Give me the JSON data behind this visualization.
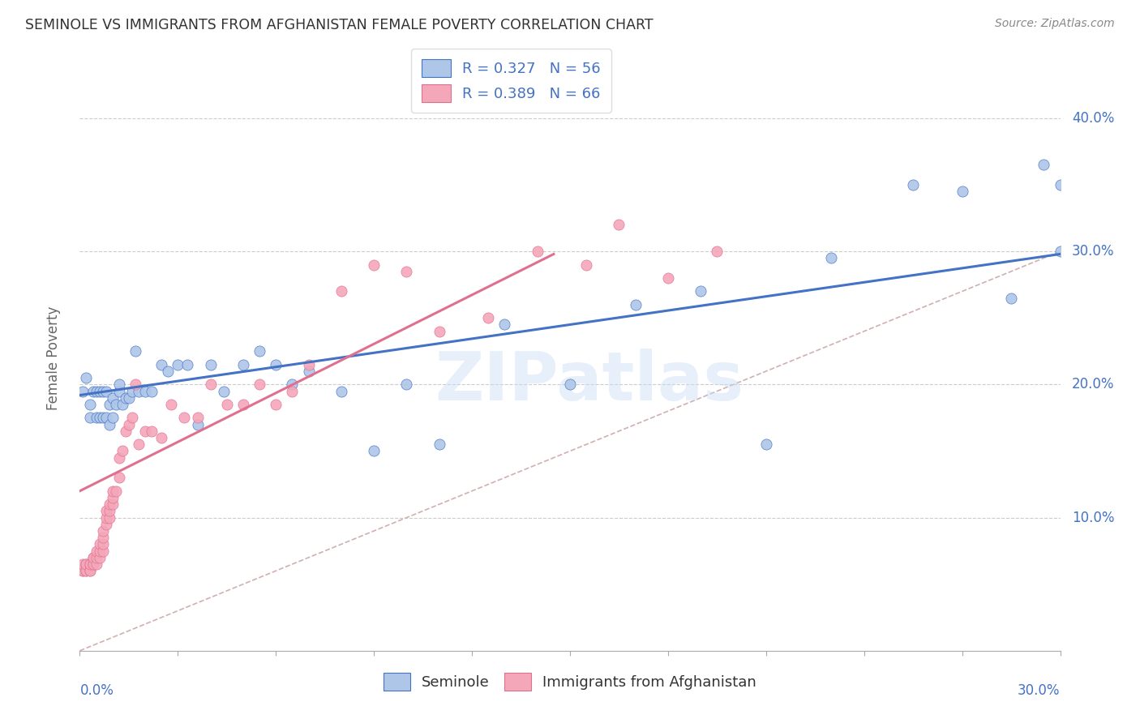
{
  "title": "SEMINOLE VS IMMIGRANTS FROM AFGHANISTAN FEMALE POVERTY CORRELATION CHART",
  "source": "Source: ZipAtlas.com",
  "ylabel": "Female Poverty",
  "ytick_labels": [
    "10.0%",
    "20.0%",
    "30.0%",
    "40.0%"
  ],
  "ytick_values": [
    0.1,
    0.2,
    0.3,
    0.4
  ],
  "xlim": [
    0.0,
    0.3
  ],
  "ylim": [
    0.0,
    0.44
  ],
  "watermark_text": "ZIPatlas",
  "legend_entry1": "R = 0.327   N = 56",
  "legend_entry2": "R = 0.389   N = 66",
  "legend_label1": "Seminole",
  "legend_label2": "Immigrants from Afghanistan",
  "color_blue": "#aec6e8",
  "color_pink": "#f4a7b9",
  "line_color_blue": "#4472c4",
  "line_color_pink": "#e07090",
  "diag_color": "#d0b0b0",
  "blue_trend_x0": 0.0,
  "blue_trend_y0": 0.192,
  "blue_trend_x1": 0.3,
  "blue_trend_y1": 0.298,
  "pink_trend_x0": 0.0,
  "pink_trend_y0": 0.12,
  "pink_trend_x1": 0.145,
  "pink_trend_y1": 0.298,
  "seminole_x": [
    0.001,
    0.002,
    0.003,
    0.003,
    0.004,
    0.005,
    0.005,
    0.006,
    0.006,
    0.007,
    0.007,
    0.008,
    0.008,
    0.009,
    0.009,
    0.01,
    0.01,
    0.011,
    0.012,
    0.012,
    0.013,
    0.014,
    0.015,
    0.016,
    0.017,
    0.018,
    0.02,
    0.022,
    0.025,
    0.027,
    0.03,
    0.033,
    0.036,
    0.04,
    0.044,
    0.05,
    0.055,
    0.06,
    0.065,
    0.07,
    0.08,
    0.09,
    0.1,
    0.11,
    0.13,
    0.15,
    0.17,
    0.19,
    0.21,
    0.23,
    0.255,
    0.27,
    0.285,
    0.295,
    0.3,
    0.3
  ],
  "seminole_y": [
    0.195,
    0.205,
    0.185,
    0.175,
    0.195,
    0.175,
    0.195,
    0.175,
    0.195,
    0.175,
    0.195,
    0.175,
    0.195,
    0.17,
    0.185,
    0.175,
    0.19,
    0.185,
    0.195,
    0.2,
    0.185,
    0.19,
    0.19,
    0.195,
    0.225,
    0.195,
    0.195,
    0.195,
    0.215,
    0.21,
    0.215,
    0.215,
    0.17,
    0.215,
    0.195,
    0.215,
    0.225,
    0.215,
    0.2,
    0.21,
    0.195,
    0.15,
    0.2,
    0.155,
    0.245,
    0.2,
    0.26,
    0.27,
    0.155,
    0.295,
    0.35,
    0.345,
    0.265,
    0.365,
    0.35,
    0.3
  ],
  "afghan_x": [
    0.001,
    0.001,
    0.001,
    0.002,
    0.002,
    0.002,
    0.002,
    0.003,
    0.003,
    0.003,
    0.003,
    0.004,
    0.004,
    0.004,
    0.004,
    0.005,
    0.005,
    0.005,
    0.006,
    0.006,
    0.006,
    0.007,
    0.007,
    0.007,
    0.007,
    0.008,
    0.008,
    0.008,
    0.009,
    0.009,
    0.009,
    0.01,
    0.01,
    0.01,
    0.011,
    0.012,
    0.012,
    0.013,
    0.014,
    0.015,
    0.016,
    0.017,
    0.018,
    0.02,
    0.022,
    0.025,
    0.028,
    0.032,
    0.036,
    0.04,
    0.045,
    0.05,
    0.055,
    0.06,
    0.065,
    0.07,
    0.08,
    0.09,
    0.1,
    0.11,
    0.125,
    0.14,
    0.155,
    0.165,
    0.18,
    0.195
  ],
  "afghan_y": [
    0.06,
    0.06,
    0.065,
    0.06,
    0.065,
    0.06,
    0.065,
    0.06,
    0.065,
    0.06,
    0.065,
    0.065,
    0.07,
    0.065,
    0.07,
    0.065,
    0.07,
    0.075,
    0.07,
    0.075,
    0.08,
    0.075,
    0.08,
    0.085,
    0.09,
    0.095,
    0.1,
    0.105,
    0.1,
    0.105,
    0.11,
    0.11,
    0.115,
    0.12,
    0.12,
    0.13,
    0.145,
    0.15,
    0.165,
    0.17,
    0.175,
    0.2,
    0.155,
    0.165,
    0.165,
    0.16,
    0.185,
    0.175,
    0.175,
    0.2,
    0.185,
    0.185,
    0.2,
    0.185,
    0.195,
    0.215,
    0.27,
    0.29,
    0.285,
    0.24,
    0.25,
    0.3,
    0.29,
    0.32,
    0.28,
    0.3
  ]
}
